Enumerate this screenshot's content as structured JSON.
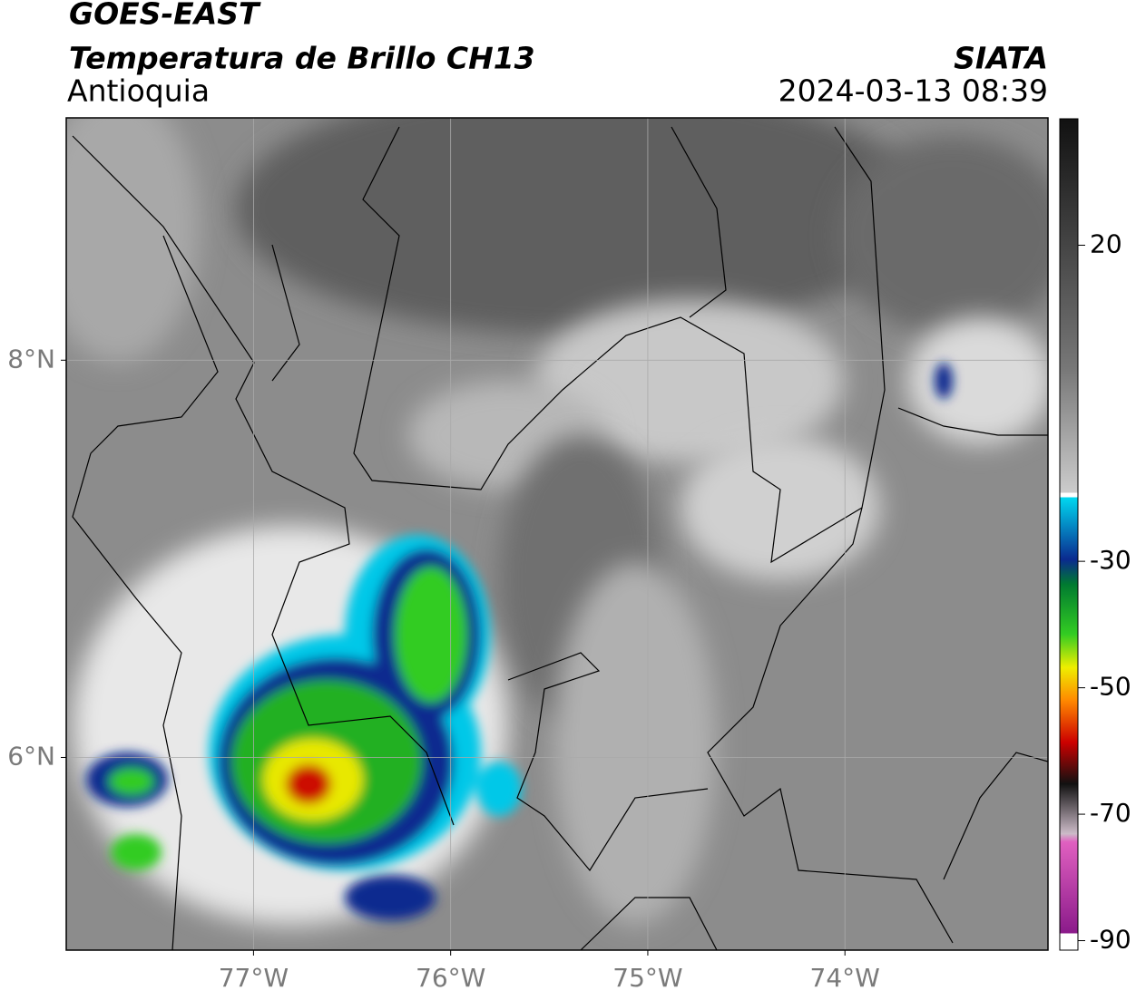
{
  "header": {
    "title": "GOES-EAST",
    "subtitle": "Temperatura de Brillo CH13",
    "region": "Antioquia",
    "source": "SIATA",
    "datetime": "2024-03-13 08:39"
  },
  "map": {
    "xlim": [
      -77.95,
      -72.97
    ],
    "ylim": [
      5.03,
      9.22
    ],
    "xticks": [
      {
        "value": -77,
        "label": "77°W"
      },
      {
        "value": -76,
        "label": "76°W"
      },
      {
        "value": -75,
        "label": "75°W"
      },
      {
        "value": -74,
        "label": "74°W"
      }
    ],
    "yticks": [
      {
        "value": 8,
        "label": "8°N"
      },
      {
        "value": 6,
        "label": "6°N"
      }
    ],
    "grid": true
  },
  "colorbar": {
    "lim": [
      -91.5,
      40
    ],
    "ticks": [
      20,
      -30,
      -50,
      -70,
      -90
    ]
  }
}
